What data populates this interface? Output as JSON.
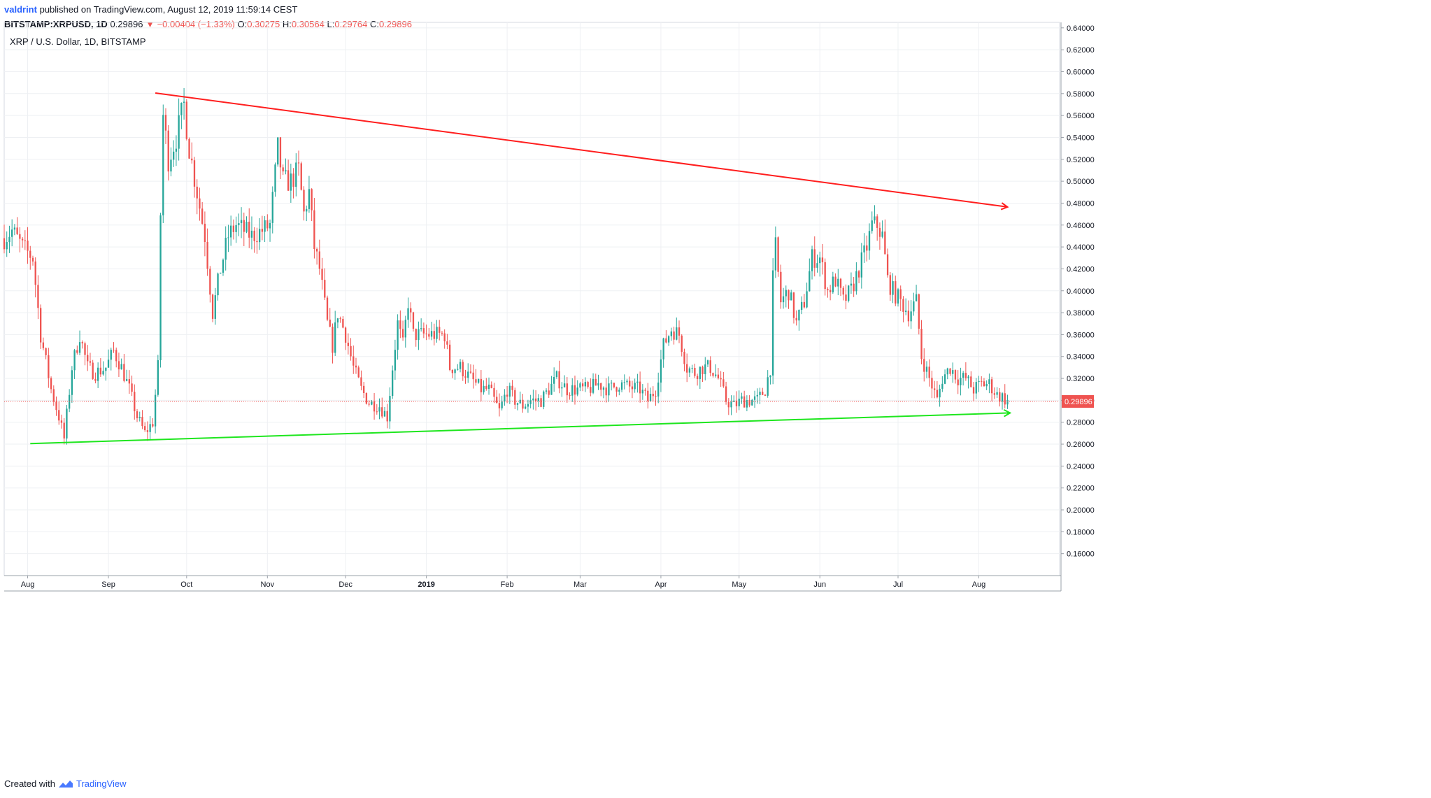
{
  "header": {
    "author": "valdrint",
    "published": "published on TradingView.com, August 12, 2019 11:59:14 CEST",
    "symbol": "BITSTAMP:XRPUSD, 1D",
    "last": "0.29896",
    "change": "−0.00404 (−1.33%)",
    "o_label": "O:",
    "o_val": "0.30275",
    "h_label": "H:",
    "h_val": "0.30564",
    "l_label": "L:",
    "l_val": "0.29764",
    "c_label": "C:",
    "c_val": "0.29896"
  },
  "chart_title": "XRP / U.S. Dollar, 1D, BITSTAMP",
  "footer": {
    "created_with": "Created with",
    "brand": "TradingView"
  },
  "colors": {
    "up": "#26a69a",
    "down": "#ef5350",
    "resistance": "#ff1e1e",
    "support": "#1ee61e",
    "grid": "#eef0f3",
    "last_price_tag": "#ef5350"
  },
  "chart_data": {
    "type": "candlestick",
    "title": "XRP / U.S. Dollar, 1D, BITSTAMP",
    "y_axis_labels": [
      "0.64000",
      "0.62000",
      "0.60000",
      "0.58000",
      "0.56000",
      "0.54000",
      "0.52000",
      "0.50000",
      "0.48000",
      "0.46000",
      "0.44000",
      "0.42000",
      "0.40000",
      "0.38000",
      "0.36000",
      "0.34000",
      "0.32000",
      "0.30000",
      "0.28000",
      "0.26000",
      "0.24000",
      "0.22000",
      "0.20000",
      "0.18000",
      "0.16000"
    ],
    "y_ticks": [
      0.64,
      0.62,
      0.6,
      0.58,
      0.56,
      0.54,
      0.52,
      0.5,
      0.48,
      0.46,
      0.44,
      0.42,
      0.4,
      0.38,
      0.36,
      0.34,
      0.32,
      0.3,
      0.28,
      0.26,
      0.24,
      0.22,
      0.2,
      0.18,
      0.16
    ],
    "ylim": [
      0.14,
      0.645
    ],
    "x_axis_labels": [
      {
        "label": "Aug",
        "date": "2018-08-01"
      },
      {
        "label": "Sep",
        "date": "2018-09-01"
      },
      {
        "label": "Oct",
        "date": "2018-10-01"
      },
      {
        "label": "Nov",
        "date": "2018-11-01"
      },
      {
        "label": "Dec",
        "date": "2018-12-01"
      },
      {
        "label": "2019",
        "date": "2019-01-01"
      },
      {
        "label": "Feb",
        "date": "2019-02-01"
      },
      {
        "label": "Mar",
        "date": "2019-03-01"
      },
      {
        "label": "Apr",
        "date": "2019-04-01"
      },
      {
        "label": "May",
        "date": "2019-05-01"
      },
      {
        "label": "Jun",
        "date": "2019-06-01"
      },
      {
        "label": "Jul",
        "date": "2019-07-01"
      },
      {
        "label": "Aug",
        "date": "2019-08-01"
      }
    ],
    "xlim": [
      "2018-07-23",
      "2019-09-01"
    ],
    "last_price": {
      "value": 0.29896,
      "label": "0.29896"
    },
    "price_anchors": [
      [
        "2018-07-23",
        0.448
      ],
      [
        "2018-07-26",
        0.455
      ],
      [
        "2018-07-30",
        0.44
      ],
      [
        "2018-08-03",
        0.43
      ],
      [
        "2018-08-06",
        0.36
      ],
      [
        "2018-08-10",
        0.31
      ],
      [
        "2018-08-13",
        0.285
      ],
      [
        "2018-08-15",
        0.265
      ],
      [
        "2018-08-18",
        0.33
      ],
      [
        "2018-08-21",
        0.36
      ],
      [
        "2018-08-24",
        0.33
      ],
      [
        "2018-08-27",
        0.325
      ],
      [
        "2018-08-31",
        0.33
      ],
      [
        "2018-09-03",
        0.345
      ],
      [
        "2018-09-06",
        0.33
      ],
      [
        "2018-09-09",
        0.31
      ],
      [
        "2018-09-12",
        0.285
      ],
      [
        "2018-09-15",
        0.27
      ],
      [
        "2018-09-18",
        0.28
      ],
      [
        "2018-09-20",
        0.33
      ],
      [
        "2018-09-21",
        0.47
      ],
      [
        "2018-09-22",
        0.56
      ],
      [
        "2018-09-24",
        0.52
      ],
      [
        "2018-09-27",
        0.54
      ],
      [
        "2018-09-30",
        0.57
      ],
      [
        "2018-10-02",
        0.53
      ],
      [
        "2018-10-05",
        0.49
      ],
      [
        "2018-10-08",
        0.45
      ],
      [
        "2018-10-11",
        0.38
      ],
      [
        "2018-10-14",
        0.42
      ],
      [
        "2018-10-17",
        0.45
      ],
      [
        "2018-10-20",
        0.46
      ],
      [
        "2018-10-23",
        0.455
      ],
      [
        "2018-10-26",
        0.45
      ],
      [
        "2018-10-30",
        0.455
      ],
      [
        "2018-11-02",
        0.46
      ],
      [
        "2018-11-05",
        0.53
      ],
      [
        "2018-11-07",
        0.5
      ],
      [
        "2018-11-10",
        0.5
      ],
      [
        "2018-11-13",
        0.51
      ],
      [
        "2018-11-15",
        0.47
      ],
      [
        "2018-11-17",
        0.49
      ],
      [
        "2018-11-19",
        0.44
      ],
      [
        "2018-11-21",
        0.42
      ],
      [
        "2018-11-24",
        0.37
      ],
      [
        "2018-11-26",
        0.35
      ],
      [
        "2018-11-28",
        0.38
      ],
      [
        "2018-12-01",
        0.36
      ],
      [
        "2018-12-04",
        0.33
      ],
      [
        "2018-12-07",
        0.31
      ],
      [
        "2018-12-10",
        0.298
      ],
      [
        "2018-12-14",
        0.295
      ],
      [
        "2018-12-17",
        0.285
      ],
      [
        "2018-12-19",
        0.33
      ],
      [
        "2018-12-21",
        0.37
      ],
      [
        "2018-12-23",
        0.35
      ],
      [
        "2018-12-25",
        0.39
      ],
      [
        "2018-12-27",
        0.36
      ],
      [
        "2018-12-30",
        0.36
      ],
      [
        "2019-01-02",
        0.36
      ],
      [
        "2019-01-05",
        0.36
      ],
      [
        "2019-01-08",
        0.36
      ],
      [
        "2019-01-10",
        0.33
      ],
      [
        "2019-01-14",
        0.33
      ],
      [
        "2019-01-18",
        0.32
      ],
      [
        "2019-01-22",
        0.31
      ],
      [
        "2019-01-25",
        0.31
      ],
      [
        "2019-01-29",
        0.29
      ],
      [
        "2019-02-01",
        0.31
      ],
      [
        "2019-02-04",
        0.3
      ],
      [
        "2019-02-07",
        0.295
      ],
      [
        "2019-02-10",
        0.3
      ],
      [
        "2019-02-14",
        0.3
      ],
      [
        "2019-02-17",
        0.31
      ],
      [
        "2019-02-20",
        0.32
      ],
      [
        "2019-02-24",
        0.31
      ],
      [
        "2019-02-28",
        0.31
      ],
      [
        "2019-03-04",
        0.31
      ],
      [
        "2019-03-08",
        0.315
      ],
      [
        "2019-03-12",
        0.31
      ],
      [
        "2019-03-16",
        0.315
      ],
      [
        "2019-03-20",
        0.312
      ],
      [
        "2019-03-24",
        0.31
      ],
      [
        "2019-03-27",
        0.3
      ],
      [
        "2019-03-30",
        0.31
      ],
      [
        "2019-04-02",
        0.35
      ],
      [
        "2019-04-05",
        0.365
      ],
      [
        "2019-04-08",
        0.36
      ],
      [
        "2019-04-11",
        0.33
      ],
      [
        "2019-04-14",
        0.325
      ],
      [
        "2019-04-17",
        0.33
      ],
      [
        "2019-04-20",
        0.33
      ],
      [
        "2019-04-23",
        0.32
      ],
      [
        "2019-04-26",
        0.3
      ],
      [
        "2019-04-29",
        0.295
      ],
      [
        "2019-05-02",
        0.3
      ],
      [
        "2019-05-05",
        0.3
      ],
      [
        "2019-05-08",
        0.3
      ],
      [
        "2019-05-11",
        0.31
      ],
      [
        "2019-05-13",
        0.33
      ],
      [
        "2019-05-14",
        0.41
      ],
      [
        "2019-05-15",
        0.44
      ],
      [
        "2019-05-17",
        0.39
      ],
      [
        "2019-05-20",
        0.4
      ],
      [
        "2019-05-23",
        0.37
      ],
      [
        "2019-05-26",
        0.39
      ],
      [
        "2019-05-29",
        0.43
      ],
      [
        "2019-06-01",
        0.43
      ],
      [
        "2019-06-04",
        0.4
      ],
      [
        "2019-06-07",
        0.41
      ],
      [
        "2019-06-10",
        0.39
      ],
      [
        "2019-06-13",
        0.4
      ],
      [
        "2019-06-16",
        0.42
      ],
      [
        "2019-06-19",
        0.44
      ],
      [
        "2019-06-21",
        0.46
      ],
      [
        "2019-06-23",
        0.46
      ],
      [
        "2019-06-25",
        0.45
      ],
      [
        "2019-06-27",
        0.41
      ],
      [
        "2019-06-29",
        0.4
      ],
      [
        "2019-07-02",
        0.39
      ],
      [
        "2019-07-05",
        0.38
      ],
      [
        "2019-07-08",
        0.39
      ],
      [
        "2019-07-10",
        0.34
      ],
      [
        "2019-07-13",
        0.32
      ],
      [
        "2019-07-16",
        0.3
      ],
      [
        "2019-07-18",
        0.32
      ],
      [
        "2019-07-21",
        0.33
      ],
      [
        "2019-07-24",
        0.32
      ],
      [
        "2019-07-27",
        0.32
      ],
      [
        "2019-07-30",
        0.31
      ],
      [
        "2019-08-02",
        0.315
      ],
      [
        "2019-08-05",
        0.315
      ],
      [
        "2019-08-08",
        0.305
      ],
      [
        "2019-08-10",
        0.303
      ],
      [
        "2019-08-12",
        0.299
      ]
    ],
    "trendlines": [
      {
        "name": "resistance",
        "color": "#ff1e1e",
        "from": [
          "2018-09-19",
          0.5805
        ],
        "to": [
          "2019-08-12",
          0.4765
        ],
        "arrow": true
      },
      {
        "name": "support",
        "color": "#1ee61e",
        "from": [
          "2018-08-02",
          0.2605
        ],
        "to": [
          "2019-08-13",
          0.2885
        ],
        "arrow": true
      }
    ]
  }
}
